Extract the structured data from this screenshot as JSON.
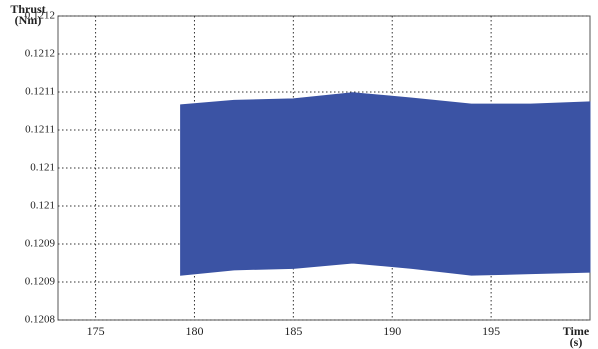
{
  "chart_data": {
    "type": "band",
    "ylabel": [
      "Thrust",
      "(Nm)"
    ],
    "xlabel": [
      "Time",
      "(s)"
    ],
    "x": [
      179.3,
      182,
      185,
      188,
      191,
      194,
      197,
      200
    ],
    "upper": [
      0.121083,
      0.121089,
      0.121091,
      0.121099,
      0.121092,
      0.121084,
      0.121084,
      0.121087
    ],
    "lower": [
      0.120859,
      0.120866,
      0.120868,
      0.120875,
      0.120868,
      0.120859,
      0.120861,
      0.120863
    ],
    "color": "#3b53a4",
    "xlim": [
      173.1,
      200
    ],
    "xticks": [
      175,
      180,
      185,
      190,
      195
    ],
    "ylim": [
      0.1208,
      0.1212
    ],
    "yticks": [
      {
        "value": 0.1208,
        "label": "0.1208"
      },
      {
        "value": 0.12085,
        "label": "0.1209"
      },
      {
        "value": 0.1209,
        "label": "0.1209"
      },
      {
        "value": 0.12095,
        "label": "0.121"
      },
      {
        "value": 0.121,
        "label": "0.121"
      },
      {
        "value": 0.12105,
        "label": "0.1211"
      },
      {
        "value": 0.1211,
        "label": "0.1211"
      },
      {
        "value": 0.12115,
        "label": "0.1212"
      },
      {
        "value": 0.1212,
        "label": "0.1212"
      }
    ],
    "grid": true
  }
}
